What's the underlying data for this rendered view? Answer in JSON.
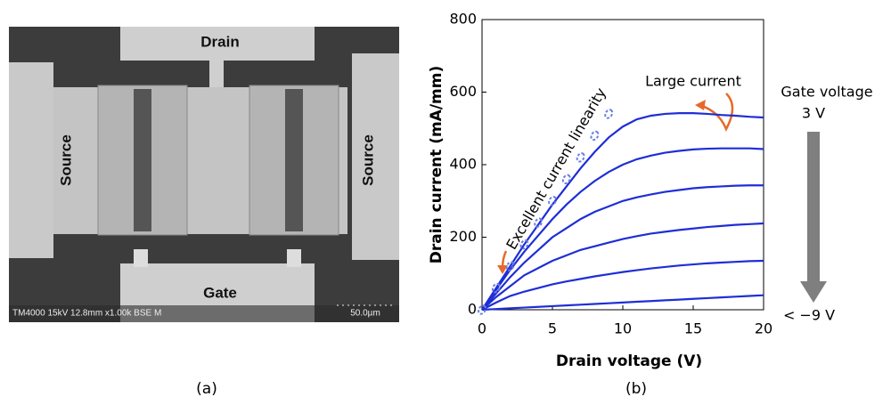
{
  "image": {
    "labels": {
      "drain": "Drain",
      "source_left": "Source",
      "source_right": "Source",
      "gate": "Gate"
    },
    "info_bar": "TM4000 15kV 12.8mm x1.00k BSE M",
    "scale_bar": "50.0µm"
  },
  "panel_labels": {
    "a": "(a)",
    "b": "(b)"
  },
  "chart_data": {
    "type": "line",
    "x_label": "Drain voltage (V)",
    "y_label": "Drain current (mA/mm)",
    "x": [
      0,
      1,
      2,
      3,
      4,
      5,
      6,
      7,
      8,
      9,
      10,
      11,
      12,
      13,
      14,
      15,
      16,
      17,
      18,
      19,
      20
    ],
    "series": [
      {
        "color": "#1e2ed6",
        "values": [
          0,
          60,
          120,
          180,
          235,
          290,
          340,
          390,
          435,
          475,
          505,
          525,
          535,
          540,
          542,
          542,
          540,
          537,
          535,
          532,
          530
        ]
      },
      {
        "color": "#1e2ed6",
        "values": [
          0,
          55,
          110,
          160,
          205,
          250,
          290,
          325,
          355,
          380,
          400,
          415,
          425,
          433,
          438,
          442,
          444,
          445,
          445,
          445,
          443
        ]
      },
      {
        "color": "#1e2ed6",
        "values": [
          0,
          45,
          90,
          130,
          165,
          200,
          225,
          250,
          270,
          285,
          300,
          310,
          318,
          325,
          330,
          335,
          338,
          340,
          342,
          343,
          343
        ]
      },
      {
        "color": "#1e2ed6",
        "values": [
          0,
          35,
          65,
          95,
          115,
          135,
          150,
          165,
          175,
          185,
          195,
          203,
          210,
          215,
          220,
          224,
          228,
          231,
          234,
          236,
          238
        ]
      },
      {
        "color": "#1e2ed6",
        "values": [
          0,
          20,
          38,
          50,
          60,
          70,
          78,
          85,
          92,
          98,
          104,
          109,
          114,
          118,
          122,
          125,
          128,
          130,
          132,
          134,
          135
        ]
      },
      {
        "color": "#1e2ed6",
        "values": [
          0,
          2,
          4,
          6,
          8,
          10,
          12,
          14,
          16,
          18,
          20,
          22,
          24,
          26,
          28,
          30,
          32,
          34,
          36,
          38,
          40
        ]
      },
      {
        "color": "#6a7de6",
        "marker": "open-circle",
        "values": [
          0,
          60,
          120,
          180,
          240,
          300,
          360,
          420,
          480,
          540,
          null,
          null,
          null,
          null,
          null,
          null,
          null,
          null,
          null,
          null,
          null
        ]
      }
    ],
    "xlim": [
      0,
      20
    ],
    "ylim": [
      0,
      800
    ],
    "xticks": [
      0,
      5,
      10,
      15,
      20
    ],
    "yticks": [
      0,
      200,
      400,
      600,
      800
    ],
    "annotations": {
      "linearity": "Excellent current linearity",
      "large_current": "Large current",
      "gate_voltage": "Gate voltage",
      "gate_top": "3 V",
      "gate_bottom": "< −9 V"
    }
  }
}
